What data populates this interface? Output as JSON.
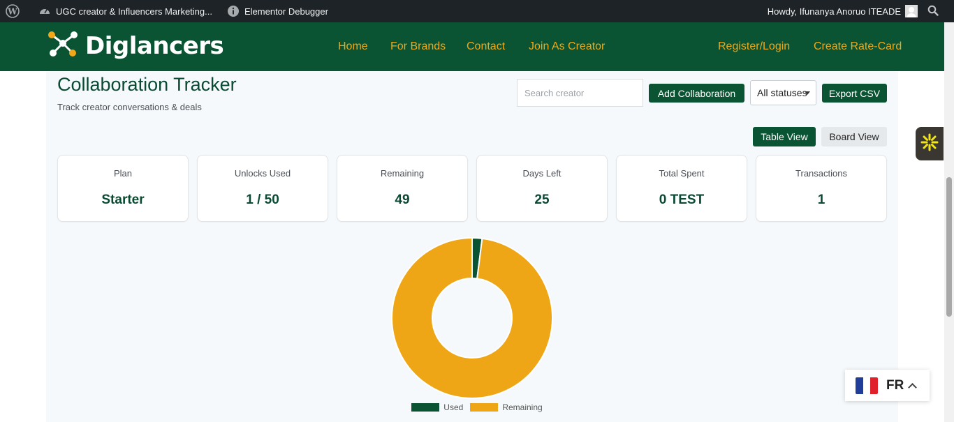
{
  "admin_bar": {
    "site_name": "UGC creator & Influencers Marketing...",
    "debugger": "Elementor Debugger",
    "greeting": "Howdy, Ifunanya Anoruo ITEADE"
  },
  "header": {
    "logo_text": "Diglancers",
    "nav": [
      "Home",
      "For Brands",
      "Contact",
      "Join As Creator"
    ],
    "register_login": "Register/Login",
    "create_rate_card": "Create Rate-Card"
  },
  "page": {
    "title": "Collaboration Tracker",
    "subtitle": "Track creator conversations & deals"
  },
  "toolbar": {
    "search_placeholder": "Search creator",
    "add_label": "Add Collaboration",
    "status_selected": "All statuses",
    "export_label": "Export CSV",
    "table_view": "Table View",
    "board_view": "Board View"
  },
  "stats": [
    {
      "label": "Plan",
      "value": "Starter"
    },
    {
      "label": "Unlocks Used",
      "value": "1 / 50"
    },
    {
      "label": "Remaining",
      "value": "49"
    },
    {
      "label": "Days Left",
      "value": "25"
    },
    {
      "label": "Total Spent",
      "value": "0 TEST"
    },
    {
      "label": "Transactions",
      "value": "1"
    }
  ],
  "chart_data": {
    "type": "pie",
    "categories": [
      "Used",
      "Remaining"
    ],
    "values": [
      1,
      49
    ],
    "colors": [
      "#0a5433",
      "#eea616"
    ],
    "legend": "bottom"
  },
  "language": {
    "code": "FR"
  },
  "colors": {
    "brand_green": "#0a5433",
    "accent_orange": "#f0a818"
  },
  "icons": {
    "wp": "wordpress-icon",
    "dashboard": "dashboard-icon",
    "info": "info-icon",
    "search": "search-icon",
    "widget": "asterisk-icon",
    "flag": "france-flag-icon"
  }
}
